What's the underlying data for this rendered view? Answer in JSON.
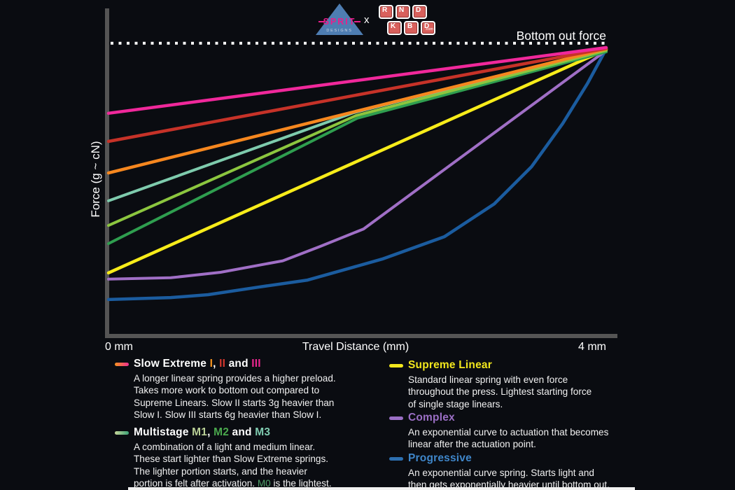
{
  "header": {
    "sprit": {
      "name": "SPRIT",
      "sub": "DESIGNS"
    },
    "collab_x": "x",
    "kbd": {
      "rows": [
        [
          "R",
          "N",
          "D"
        ],
        [
          "K",
          "B",
          "D"
        ]
      ],
      "dotcom": ".com"
    }
  },
  "chart": {
    "bottom_out_label": "Bottom out force",
    "y_axis_label": "Force (g ~ cN)",
    "x_axis_title": "Travel Distance (mm)",
    "x_min_label": "0 mm",
    "x_max_label": "4 mm"
  },
  "chart_data": {
    "type": "line",
    "xlabel": "Travel Distance (mm)",
    "ylabel": "Force (g ~ cN)",
    "x_range_mm": [
      0,
      4
    ],
    "y_unit": "percent of bottom-out force (no numeric scale shown)",
    "grid": false,
    "bottom_out_line": {
      "label": "Bottom out force",
      "force_pct": 102,
      "style": "dotted-white"
    },
    "series": [
      {
        "id": "progressive",
        "name": "Progressive",
        "color": "#1b5c9f",
        "width": 4.5,
        "points": [
          [
            0,
            12.7
          ],
          [
            0.5,
            13.4
          ],
          [
            0.8,
            14.4
          ],
          [
            1.2,
            17.0
          ],
          [
            1.6,
            19.5
          ],
          [
            2.2,
            26.8
          ],
          [
            2.7,
            34.6
          ],
          [
            3.1,
            46
          ],
          [
            3.4,
            59
          ],
          [
            3.65,
            74
          ],
          [
            3.85,
            88
          ],
          [
            4,
            100
          ]
        ]
      },
      {
        "id": "complex",
        "name": "Complex",
        "color": "#a06fc6",
        "width": 4,
        "points": [
          [
            0,
            19.8
          ],
          [
            0.5,
            20.3
          ],
          [
            0.9,
            22.2
          ],
          [
            1.4,
            26.2
          ],
          [
            1.7,
            31.2
          ],
          [
            2.05,
            37.3
          ],
          [
            4,
            99.5
          ]
        ]
      },
      {
        "id": "supreme-linear",
        "name": "Supreme Linear",
        "color": "#f7ec1a",
        "width": 4.5,
        "points": [
          [
            0,
            22.0
          ],
          [
            4,
            99.8
          ]
        ]
      },
      {
        "id": "multistage-m1",
        "name": "Multistage M1",
        "color": "#2f9e4f",
        "width": 4,
        "points": [
          [
            0,
            32.2
          ],
          [
            2.0,
            75.9
          ],
          [
            4,
            99.0
          ]
        ]
      },
      {
        "id": "multistage-m2",
        "name": "Multistage M2",
        "color": "#8cc63f",
        "width": 4,
        "points": [
          [
            0,
            38.5
          ],
          [
            1.99,
            76.8
          ],
          [
            4,
            99.5
          ]
        ]
      },
      {
        "id": "multistage-m3",
        "name": "Multistage M3",
        "color": "#7ecbad",
        "width": 4,
        "points": [
          [
            0,
            47.1
          ],
          [
            1.97,
            77.8
          ],
          [
            4,
            100
          ]
        ]
      },
      {
        "id": "slow-extreme-i",
        "name": "Slow Extreme I",
        "color": "#f6871f",
        "width": 4.5,
        "points": [
          [
            0,
            56.8
          ],
          [
            4,
            100
          ]
        ]
      },
      {
        "id": "slow-extreme-ii",
        "name": "Slow Extreme II",
        "color": "#c63228",
        "width": 4.5,
        "points": [
          [
            0,
            67.8
          ],
          [
            4,
            100.2
          ]
        ]
      },
      {
        "id": "slow-extreme-iii",
        "name": "Slow Extreme III",
        "color": "#f0289b",
        "width": 4.5,
        "points": [
          [
            0,
            77.6
          ],
          [
            4,
            100.5
          ]
        ]
      }
    ]
  },
  "legend": {
    "items": {
      "slow_extreme": {
        "swatch": {
          "type": "gradient",
          "colors": [
            "#f7941e",
            "#ee2d92"
          ]
        },
        "title_parts": [
          {
            "text": "Slow Extreme "
          },
          {
            "text": "I",
            "color": "#f7941e"
          },
          {
            "text": ", "
          },
          {
            "text": "II",
            "color": "#d4372e"
          },
          {
            "text": " and "
          },
          {
            "text": "III",
            "color": "#ec268f"
          }
        ],
        "body_parts": [
          {
            "text": "A longer linear spring provides a higher preload.\nTakes more work to bottom out compared to\nSupreme Linears. Slow II starts 3g heavier than\nSlow I. Slow III starts 6g heavier than Slow I."
          }
        ]
      },
      "multistage": {
        "swatch": {
          "type": "gradient",
          "colors": [
            "#c9d79a",
            "#3aa276"
          ]
        },
        "title_parts": [
          {
            "text": "Multistage "
          },
          {
            "text": "M1",
            "color": "#b9cf96"
          },
          {
            "text": ", "
          },
          {
            "text": "M2",
            "color": "#4aa84d"
          },
          {
            "text": " and "
          },
          {
            "text": "M3",
            "color": "#7fcbb0"
          }
        ],
        "body_parts": [
          {
            "text": "A combination of a light and medium linear.\nThese start lighter than Slow Extreme springs.\nThe lighter portion starts, and the heavier\nportion is felt after activation. "
          },
          {
            "text": "M0",
            "color": "#4e9e68"
          },
          {
            "text": " is the lightest."
          }
        ]
      },
      "supreme_linear": {
        "swatch": {
          "type": "solid",
          "colors": [
            "#f2e71d"
          ]
        },
        "title_parts": [
          {
            "text": "Supreme Linear",
            "color": "#f2e71d"
          }
        ],
        "body_parts": [
          {
            "text": "Standard linear spring with even force\nthroughout the press. Lightest starting force\nof single stage linears."
          }
        ]
      },
      "complex": {
        "swatch": {
          "type": "solid",
          "colors": [
            "#9b6fc5"
          ]
        },
        "title_parts": [
          {
            "text": "Complex",
            "color": "#9b6fc5"
          }
        ],
        "body_parts": [
          {
            "text": "An exponential curve to actuation that becomes\nlinear after the actuation point."
          }
        ]
      },
      "progressive": {
        "swatch": {
          "type": "solid",
          "colors": [
            "#2d6fb0"
          ]
        },
        "title_parts": [
          {
            "text": "Progressive",
            "color": "#3f86c9"
          }
        ],
        "body_parts": [
          {
            "text": "An exponential curve spring. Starts light and\nthen gets exponentially heavier until bottom out."
          }
        ]
      }
    }
  }
}
